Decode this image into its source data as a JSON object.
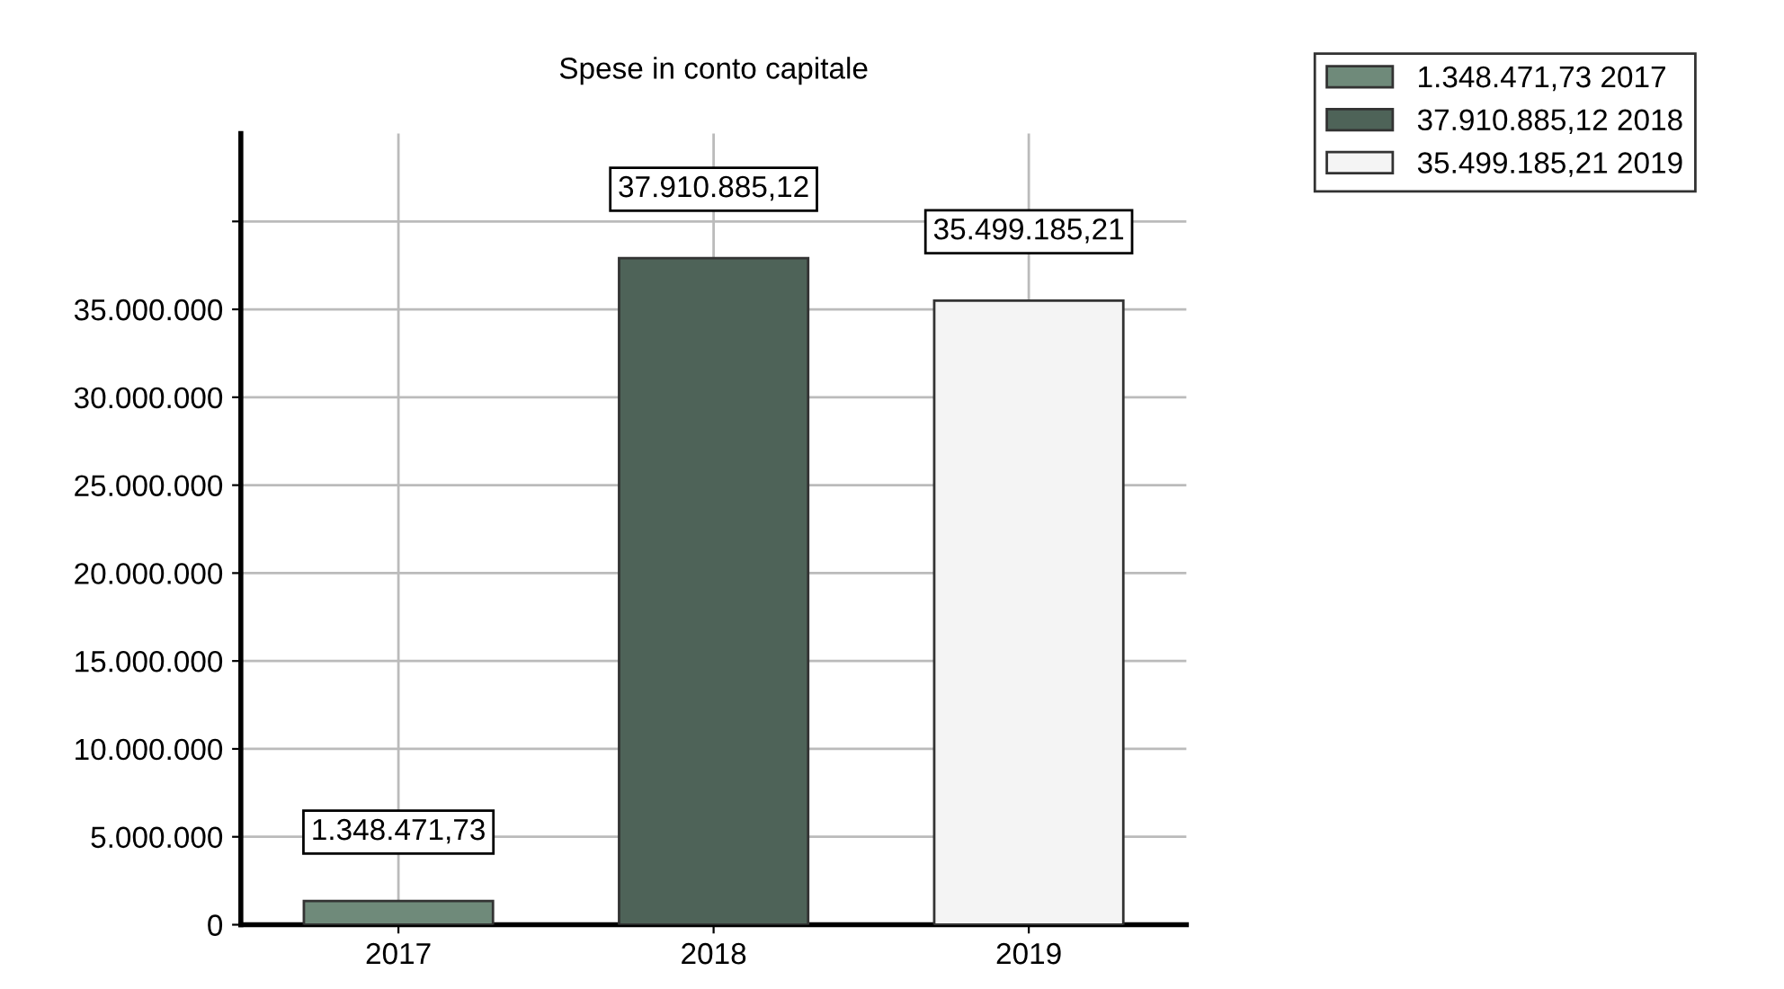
{
  "chart_data": {
    "type": "bar",
    "title": "Spese in conto capitale",
    "categories": [
      "2017",
      "2018",
      "2019"
    ],
    "series": [
      {
        "name": "1.348.471,73 2017",
        "color": "#6f8a7a",
        "values": [
          1348471.73,
          null,
          null
        ],
        "value_labels": [
          "1.348.471,73",
          null,
          null
        ]
      },
      {
        "name": "37.910.885,12 2018",
        "color": "#4e6358",
        "values": [
          null,
          37910885.12,
          null
        ],
        "value_labels": [
          null,
          "37.910.885,12",
          null
        ]
      },
      {
        "name": "35.499.185,21 2019",
        "color": "#f4f4f4",
        "values": [
          null,
          null,
          35499185.21
        ],
        "value_labels": [
          null,
          null,
          "35.499.185,21"
        ]
      }
    ],
    "ylim": [
      0,
      45000000
    ],
    "yticks": [
      {
        "value": 0,
        "label": "0"
      },
      {
        "value": 5000000,
        "label": "5.000.000"
      },
      {
        "value": 10000000,
        "label": "10.000.000"
      },
      {
        "value": 15000000,
        "label": "15.000.000"
      },
      {
        "value": 20000000,
        "label": "20.000.000"
      },
      {
        "value": 25000000,
        "label": "25.000.000"
      },
      {
        "value": 30000000,
        "label": "30.000.000"
      },
      {
        "value": 35000000,
        "label": "35.000.000"
      },
      {
        "value": 40000000,
        "label": null
      }
    ],
    "grid": true,
    "legend": "top right"
  }
}
